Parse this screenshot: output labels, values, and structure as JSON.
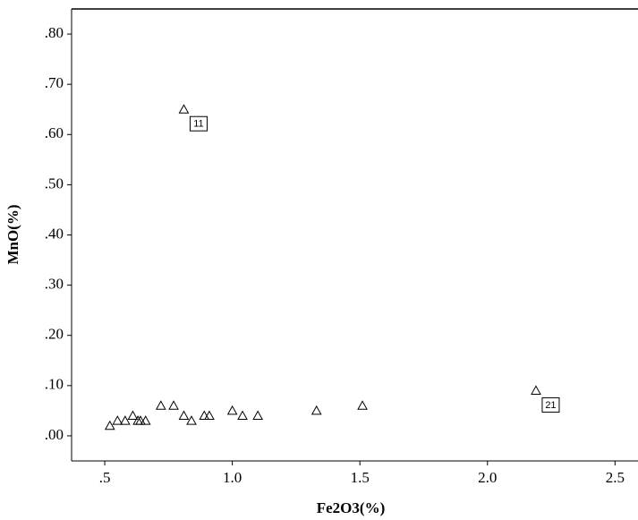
{
  "chart_data": {
    "type": "scatter",
    "x_label": "Fe2O3(%)",
    "y_label": "MnO(%)",
    "x": [
      0.52,
      0.55,
      0.58,
      0.61,
      0.63,
      0.64,
      0.66,
      0.72,
      0.77,
      0.81,
      0.81,
      0.84,
      0.89,
      0.91,
      1.0,
      1.04,
      1.1,
      1.33,
      1.51,
      2.19
    ],
    "values": [
      0.02,
      0.03,
      0.03,
      0.04,
      0.03,
      0.03,
      0.03,
      0.06,
      0.06,
      0.04,
      0.65,
      0.03,
      0.04,
      0.04,
      0.05,
      0.04,
      0.04,
      0.05,
      0.06,
      0.09
    ],
    "color": "#000000",
    "annotations": [
      {
        "text": "11",
        "x": 0.81,
        "y": 0.65
      },
      {
        "text": "21",
        "x": 2.19,
        "y": 0.09
      }
    ],
    "xlim": [
      0.37,
      2.59
    ],
    "ylim": [
      -0.05,
      0.85
    ],
    "xticks": [
      {
        "value": 0.5,
        "label": ".5"
      },
      {
        "value": 1.0,
        "label": "1.0"
      },
      {
        "value": 1.5,
        "label": "1.5"
      },
      {
        "value": 2.0,
        "label": "2.0"
      },
      {
        "value": 2.5,
        "label": "2.5"
      }
    ],
    "yticks": [
      {
        "value": 0,
        "label": ".00"
      },
      {
        "value": 0.1,
        "label": ".10"
      },
      {
        "value": 0.2,
        "label": ".20"
      },
      {
        "value": 0.3,
        "label": ".30"
      },
      {
        "value": 0.4,
        "label": ".40"
      },
      {
        "value": 0.5,
        "label": ".50"
      },
      {
        "value": 0.6,
        "label": ".60"
      },
      {
        "value": 0.7,
        "label": ".70"
      },
      {
        "value": 0.8,
        "label": ".80"
      }
    ]
  }
}
